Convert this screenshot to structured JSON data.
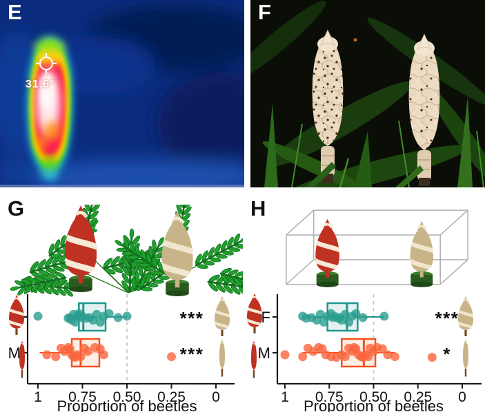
{
  "panels": {
    "E": {
      "label": "E",
      "type": "thermal-image",
      "temperature_reading": "31.6°"
    },
    "F": {
      "label": "F",
      "type": "night-photo-of-two-cones"
    },
    "G": {
      "label": "G",
      "illustration": "red-and-tan-cone-models-among-fern-foliage"
    },
    "H": {
      "label": "H",
      "illustration": "red-and-tan-cone-models-inside-wireframe-cage"
    }
  },
  "colors": {
    "teal_stroke": "#1f968e",
    "teal_fill": "#d9edeb",
    "teal_point": "#2a9d8f",
    "orange_stroke": "#f94f1f",
    "orange_fill": "#fdeadd",
    "orange_point": "#f9653c",
    "red_cone": "#bf3222",
    "tan_cone": "#c8b488",
    "stripe_on_red": "#f6ead6",
    "stripe_on_tan": "#f0e6cd",
    "stalk_brown": "#7a4a22",
    "pot_green": "#3a7c2b",
    "pot_green_dark": "#295a1e",
    "axis": "#1a1a1a",
    "reference_line": "#c2c2c2",
    "leaf_green": "#1fa12d",
    "leaf_dark": "#0b5a14",
    "wireframe": "#aeaeae",
    "star": "#111111"
  },
  "icons": [
    {
      "name": "female-cone-red-icon"
    },
    {
      "name": "male-cone-red-icon"
    },
    {
      "name": "female-cone-tan-icon"
    },
    {
      "name": "male-cone-tan-icon"
    },
    {
      "name": "thermal-crosshair-icon"
    }
  ],
  "chart_data": [
    {
      "panel": "G",
      "type": "boxplot",
      "orientation": "horizontal",
      "title": "",
      "xlabel": "Proportion of beetles",
      "x_ticks": [
        "1",
        "0.75",
        "0.50",
        "0.25",
        "0"
      ],
      "x_tick_values": [
        1,
        0.75,
        0.5,
        0.25,
        0
      ],
      "x_axis_reversed": true,
      "reference_line": 0.5,
      "categories": [
        "F",
        "M"
      ],
      "series": [
        {
          "category": "F",
          "significance": "***",
          "box": {
            "q1": 0.77,
            "median": 0.745,
            "q3": 0.62
          },
          "whiskers": [
            0.83,
            0.5
          ],
          "points": [
            1.0,
            0.83,
            0.82,
            0.81,
            0.8,
            0.79,
            0.78,
            0.77,
            0.76,
            0.75,
            0.73,
            0.71,
            0.69,
            0.67,
            0.65,
            0.63,
            0.6,
            0.55,
            0.5
          ]
        },
        {
          "category": "M",
          "significance": "***",
          "box": {
            "q1": 0.81,
            "median": 0.76,
            "q3": 0.655
          },
          "whiskers": [
            0.99,
            0.63
          ],
          "points": [
            0.95,
            0.9,
            0.87,
            0.85,
            0.83,
            0.82,
            0.81,
            0.8,
            0.79,
            0.78,
            0.76,
            0.74,
            0.72,
            0.68,
            0.65,
            0.63,
            0.25
          ]
        }
      ]
    },
    {
      "panel": "H",
      "type": "boxplot",
      "orientation": "horizontal",
      "title": "",
      "xlabel": "Proportion of beetles",
      "x_ticks": [
        "1",
        "0.75",
        "0.50",
        "0.25",
        "0"
      ],
      "x_tick_values": [
        1,
        0.75,
        0.5,
        0.25,
        0
      ],
      "x_axis_reversed": true,
      "reference_line": 0.5,
      "categories": [
        "F",
        "M"
      ],
      "series": [
        {
          "category": "F",
          "significance": "***",
          "box": {
            "q1": 0.76,
            "median": 0.65,
            "q3": 0.59
          },
          "whiskers": [
            0.88,
            0.44
          ],
          "points": [
            0.9,
            0.88,
            0.85,
            0.82,
            0.8,
            0.78,
            0.76,
            0.74,
            0.73,
            0.72,
            0.7,
            0.69,
            0.68,
            0.66,
            0.64,
            0.62,
            0.6,
            0.56,
            0.44
          ]
        },
        {
          "category": "M",
          "significance": "*",
          "box": {
            "q1": 0.68,
            "median": 0.555,
            "q3": 0.49
          },
          "whiskers": [
            0.9,
            0.38
          ],
          "points": [
            1.0,
            0.9,
            0.87,
            0.84,
            0.81,
            0.79,
            0.77,
            0.74,
            0.71,
            0.68,
            0.66,
            0.64,
            0.62,
            0.61,
            0.6,
            0.585,
            0.57,
            0.56,
            0.545,
            0.53,
            0.52,
            0.5,
            0.48,
            0.45,
            0.42,
            0.38,
            0.17
          ]
        }
      ]
    }
  ]
}
